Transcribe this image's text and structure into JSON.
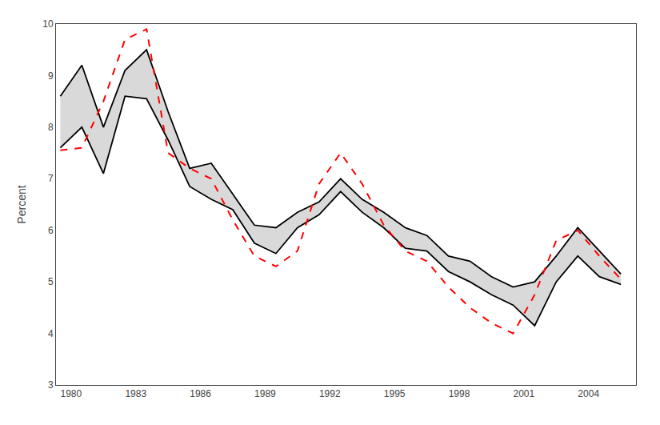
{
  "chart_data": {
    "type": "band",
    "ylabel": "Percent",
    "x": [
      1979.5,
      1980.5,
      1981.5,
      1982.5,
      1983.5,
      1984.5,
      1985.5,
      1986.5,
      1987.5,
      1988.5,
      1989.5,
      1990.5,
      1991.5,
      1992.5,
      1993.5,
      1994.5,
      1995.5,
      1996.5,
      1997.5,
      1998.5,
      1999.5,
      2000.5,
      2001.5,
      2002.5,
      2003.5,
      2004.5,
      2005.5
    ],
    "band": {
      "color": "#000000",
      "upper": [
        8.6,
        9.2,
        8.0,
        9.1,
        9.5,
        8.3,
        7.2,
        7.3,
        6.7,
        6.1,
        6.05,
        6.35,
        6.55,
        7.0,
        6.6,
        6.35,
        6.05,
        5.9,
        5.5,
        5.4,
        5.1,
        4.9,
        5.0,
        5.5,
        6.05,
        5.6,
        5.15
      ],
      "lower": [
        7.6,
        8.0,
        7.1,
        8.6,
        8.55,
        7.75,
        6.85,
        6.6,
        6.4,
        5.75,
        5.55,
        6.05,
        6.3,
        6.75,
        6.35,
        6.05,
        5.65,
        5.6,
        5.2,
        5.0,
        4.75,
        4.55,
        4.15,
        5.0,
        5.5,
        5.1,
        4.95
      ]
    },
    "series": [
      {
        "color": "#ff0000",
        "line_style": "dashed",
        "values": [
          7.55,
          7.6,
          8.5,
          9.7,
          9.9,
          7.5,
          7.2,
          7.0,
          6.2,
          5.5,
          5.3,
          5.6,
          6.9,
          7.5,
          6.9,
          6.1,
          5.6,
          5.4,
          4.9,
          4.5,
          4.2,
          4.0,
          4.75,
          5.8,
          6.0,
          5.5,
          5.05
        ]
      }
    ],
    "xlim": [
      1979.3,
      2006.2
    ],
    "ylim": [
      3,
      10
    ],
    "xticks": [
      1980,
      1983,
      1986,
      1989,
      1992,
      1995,
      1998,
      2001,
      2004
    ],
    "yticks": [
      3,
      4,
      5,
      6,
      7,
      8,
      9,
      10
    ],
    "grid": false
  }
}
